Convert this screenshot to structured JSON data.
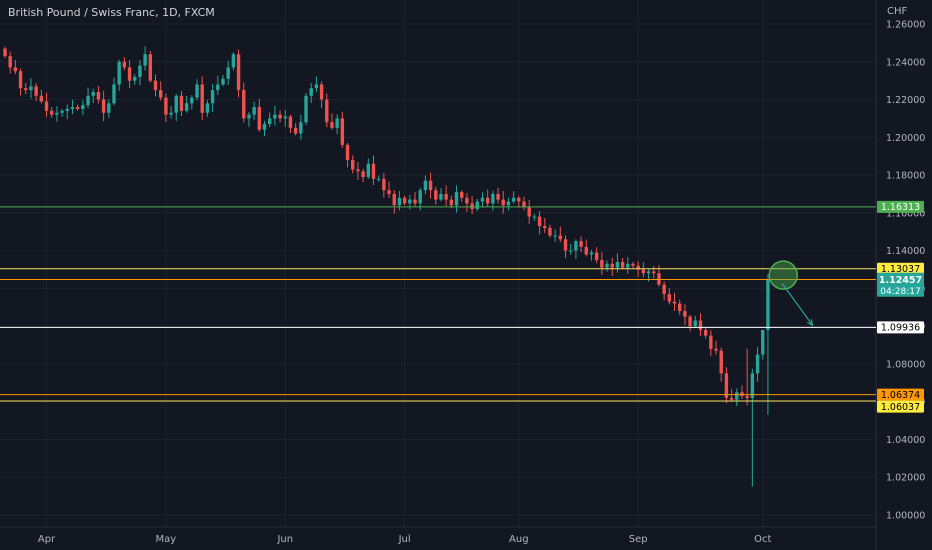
{
  "header": {
    "title": "British Pound / Swiss Franc, 1D, FXCM",
    "currency": "CHF"
  },
  "chart_data": {
    "type": "candlestick",
    "symbol": "British Pound / Swiss Franc",
    "interval": "1D",
    "source": "FXCM",
    "currency": "CHF",
    "y_ticks": [
      "1.26000",
      "1.24000",
      "1.22000",
      "1.20000",
      "1.18000",
      "1.16000",
      "1.14000",
      "1.12000",
      "1.10000",
      "1.08000",
      "1.06000",
      "1.04000",
      "1.02000",
      "1.00000"
    ],
    "ylim": [
      0.995,
      1.265
    ],
    "x_ticks": [
      {
        "label": "Apr",
        "bar": 8
      },
      {
        "label": "May",
        "bar": 31
      },
      {
        "label": "Jun",
        "bar": 54
      },
      {
        "label": "Jul",
        "bar": 77
      },
      {
        "label": "Aug",
        "bar": 99
      },
      {
        "label": "Sep",
        "bar": 122
      },
      {
        "label": "Oct",
        "bar": 146
      }
    ],
    "bar_count": 156,
    "closes": [
      1.243,
      1.237,
      1.235,
      1.226,
      1.225,
      1.227,
      1.222,
      1.219,
      1.214,
      1.212,
      1.213,
      1.214,
      1.215,
      1.216,
      1.215,
      1.217,
      1.222,
      1.224,
      1.22,
      1.213,
      1.218,
      1.228,
      1.24,
      1.237,
      1.23,
      1.232,
      1.238,
      1.244,
      1.23,
      1.225,
      1.221,
      1.212,
      1.213,
      1.222,
      1.214,
      1.218,
      1.221,
      1.228,
      1.213,
      1.218,
      1.225,
      1.228,
      1.231,
      1.237,
      1.244,
      1.225,
      1.21,
      1.212,
      1.216,
      1.204,
      1.207,
      1.21,
      1.212,
      1.21,
      1.211,
      1.205,
      1.202,
      1.208,
      1.222,
      1.226,
      1.228,
      1.22,
      1.208,
      1.205,
      1.21,
      1.196,
      1.188,
      1.183,
      1.182,
      1.179,
      1.186,
      1.178,
      1.178,
      1.172,
      1.17,
      1.164,
      1.168,
      1.165,
      1.167,
      1.165,
      1.172,
      1.177,
      1.172,
      1.167,
      1.17,
      1.167,
      1.164,
      1.171,
      1.168,
      1.165,
      1.162,
      1.166,
      1.168,
      1.165,
      1.17,
      1.167,
      1.164,
      1.166,
      1.168,
      1.166,
      1.163,
      1.158,
      1.158,
      1.153,
      1.152,
      1.148,
      1.148,
      1.146,
      1.14,
      1.14,
      1.145,
      1.142,
      1.138,
      1.139,
      1.135,
      1.131,
      1.133,
      1.131,
      1.134,
      1.131,
      1.133,
      1.132,
      1.13,
      1.128,
      1.129,
      1.128,
      1.122,
      1.117,
      1.113,
      1.112,
      1.108,
      1.105,
      1.1,
      1.103,
      1.098,
      1.095,
      1.088,
      1.087,
      1.075,
      1.062,
      1.061,
      1.065,
      1.063,
      1.062,
      1.075,
      1.085,
      1.098,
      1.1246
    ],
    "horizontal_levels": [
      {
        "value": 1.16313,
        "label": "1.16313",
        "color": "#4caf50",
        "label_bg": "#4caf50",
        "label_fg": "#ffffff"
      },
      {
        "value": 1.13037,
        "label": "1.13037",
        "color": "#f5e15c",
        "label_bg": "#ffeb3b",
        "label_fg": "#000000"
      },
      {
        "value": 1.12471,
        "label": "1.12471",
        "color": "#ff9800",
        "label_bg": "#ff9800",
        "label_fg": "#000000"
      },
      {
        "value": 1.09936,
        "label": "1.09936",
        "color": "#ffffff",
        "label_bg": "#ffffff",
        "label_fg": "#000000"
      },
      {
        "value": 1.06374,
        "label": "1.06374",
        "color": "#ff9800",
        "label_bg": "#ff9800",
        "label_fg": "#000000"
      },
      {
        "value": 1.06037,
        "label": "1.06037",
        "color": "#f5e15c",
        "label_bg": "#ffeb3b",
        "label_fg": "#000000"
      }
    ],
    "last_price": {
      "value": 1.12457,
      "label": "1.12457",
      "countdown": "04:28:17",
      "color": "#26a69a"
    },
    "annotations": [
      {
        "type": "circle",
        "bar": 149,
        "price": 1.127,
        "color": "#4caf50"
      },
      {
        "type": "arrow",
        "from_bar": 149,
        "from_price": 1.1225,
        "to_bar": 155,
        "to_price": 1.1005,
        "color": "#26a69a"
      }
    ],
    "colors": {
      "up": "#26a69a",
      "down": "#ef5350",
      "background": "#131722",
      "grid": "#1e222d",
      "axis_text": "#b2b5be"
    }
  }
}
